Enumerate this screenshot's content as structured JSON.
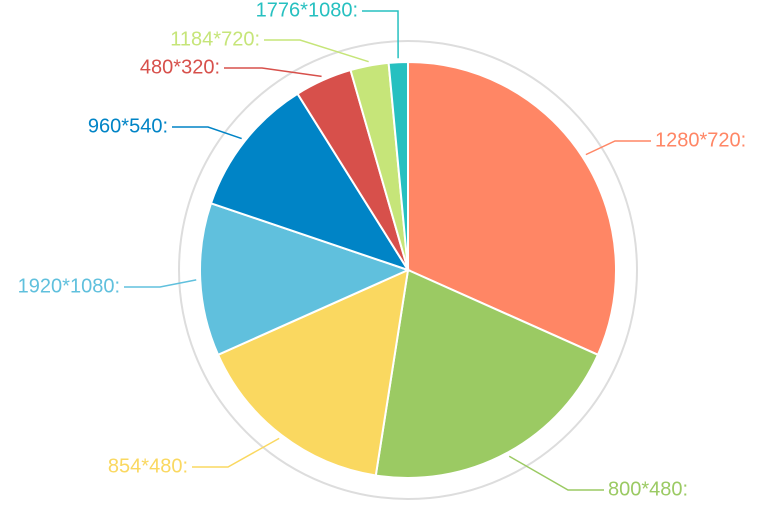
{
  "chart_data": {
    "type": "pie",
    "title": "",
    "legend": "none",
    "series": [
      {
        "values": [
          32,
          21,
          16,
          12,
          11,
          4.5,
          3,
          1.5
        ],
        "labels": [
          "1280*720:",
          "800*480:",
          "854*480:",
          "1920*1080:",
          "960*540:",
          "480*320:",
          "1184*720:",
          "1776*1080:"
        ],
        "colors": [
          "#FF8665",
          "#9BCA63",
          "#FAD860",
          "#60C0DD",
          "#0084C6",
          "#D7504B",
          "#C6E579",
          "#26C0C0"
        ]
      }
    ],
    "start_position": "top",
    "direction": "clockwise",
    "outer_ring": true
  }
}
